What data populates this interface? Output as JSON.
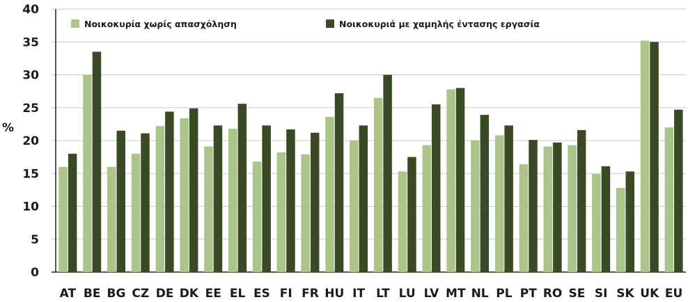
{
  "chart_data": {
    "type": "bar",
    "ylabel": "%",
    "ylim": [
      0,
      40
    ],
    "yticks": [
      0,
      5,
      10,
      15,
      20,
      25,
      30,
      35,
      40
    ],
    "grid": true,
    "legend_position": "top",
    "categories": [
      "AT",
      "BE",
      "BG",
      "CZ",
      "DE",
      "DK",
      "EE",
      "EL",
      "ES",
      "FI",
      "FR",
      "HU",
      "IT",
      "LT",
      "LU",
      "LV",
      "MT",
      "NL",
      "PL",
      "PT",
      "RO",
      "SE",
      "SI",
      "SK",
      "UK",
      "EU"
    ],
    "series": [
      {
        "name": "Νοικοκυρία χωρίς απασχόληση",
        "color": "#aac48a",
        "values": [
          16.0,
          30.0,
          16.0,
          18.0,
          22.2,
          23.4,
          19.1,
          21.8,
          16.8,
          18.2,
          17.9,
          23.6,
          20.0,
          26.5,
          15.3,
          19.3,
          27.8,
          20.0,
          20.8,
          16.4,
          19.1,
          19.3,
          14.9,
          12.8,
          35.2,
          22.0
        ]
      },
      {
        "name": "Νοικοκυριά με χαμηλής έντασης εργασία",
        "color": "#3a4a26",
        "values": [
          18.0,
          33.5,
          21.5,
          21.1,
          24.4,
          24.9,
          22.3,
          25.6,
          22.3,
          21.7,
          21.2,
          27.2,
          22.3,
          30.0,
          17.5,
          25.5,
          28.0,
          23.9,
          22.3,
          20.1,
          19.7,
          21.6,
          16.1,
          15.3,
          35.0,
          24.7
        ]
      }
    ]
  }
}
